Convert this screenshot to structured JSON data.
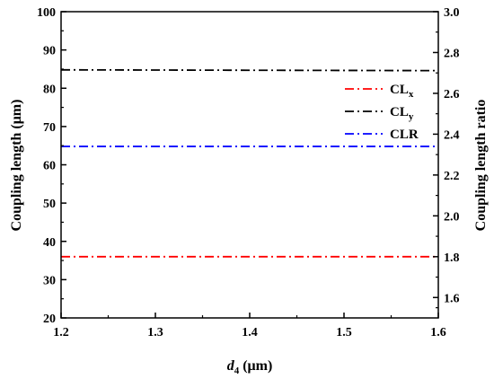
{
  "chart_data": {
    "type": "line",
    "x": [
      1.2,
      1.6
    ],
    "xlim": [
      1.2,
      1.6
    ],
    "xticks": [
      "1.2",
      "1.3",
      "1.4",
      "1.5",
      "1.6"
    ],
    "xlabel": {
      "italic": "d",
      "sub": "4",
      "rest": " (μm)"
    },
    "ylim_left": [
      20,
      100
    ],
    "yticks_left": [
      "20",
      "30",
      "40",
      "50",
      "60",
      "70",
      "80",
      "90",
      "100"
    ],
    "ylabel_left": "Coupling length (μm)",
    "ylim_right": [
      1.5,
      3.0
    ],
    "yticks_right": [
      "1.6",
      "1.8",
      "2.0",
      "2.2",
      "2.4",
      "2.6",
      "2.8",
      "3.0"
    ],
    "ylabel_right": "Coupling length ratio",
    "legend_position": "upper-right",
    "series": [
      {
        "name": "CL",
        "name_sub": "x",
        "axis": "left",
        "values": [
          36.0,
          36.0
        ],
        "color": "#ff0000"
      },
      {
        "name": "CL",
        "name_sub": "y",
        "axis": "left",
        "values": [
          84.8,
          84.6
        ],
        "color": "#000000"
      },
      {
        "name": "CLR",
        "name_sub": "",
        "axis": "right",
        "values": [
          2.34,
          2.34
        ],
        "color": "#0000ff"
      }
    ]
  }
}
